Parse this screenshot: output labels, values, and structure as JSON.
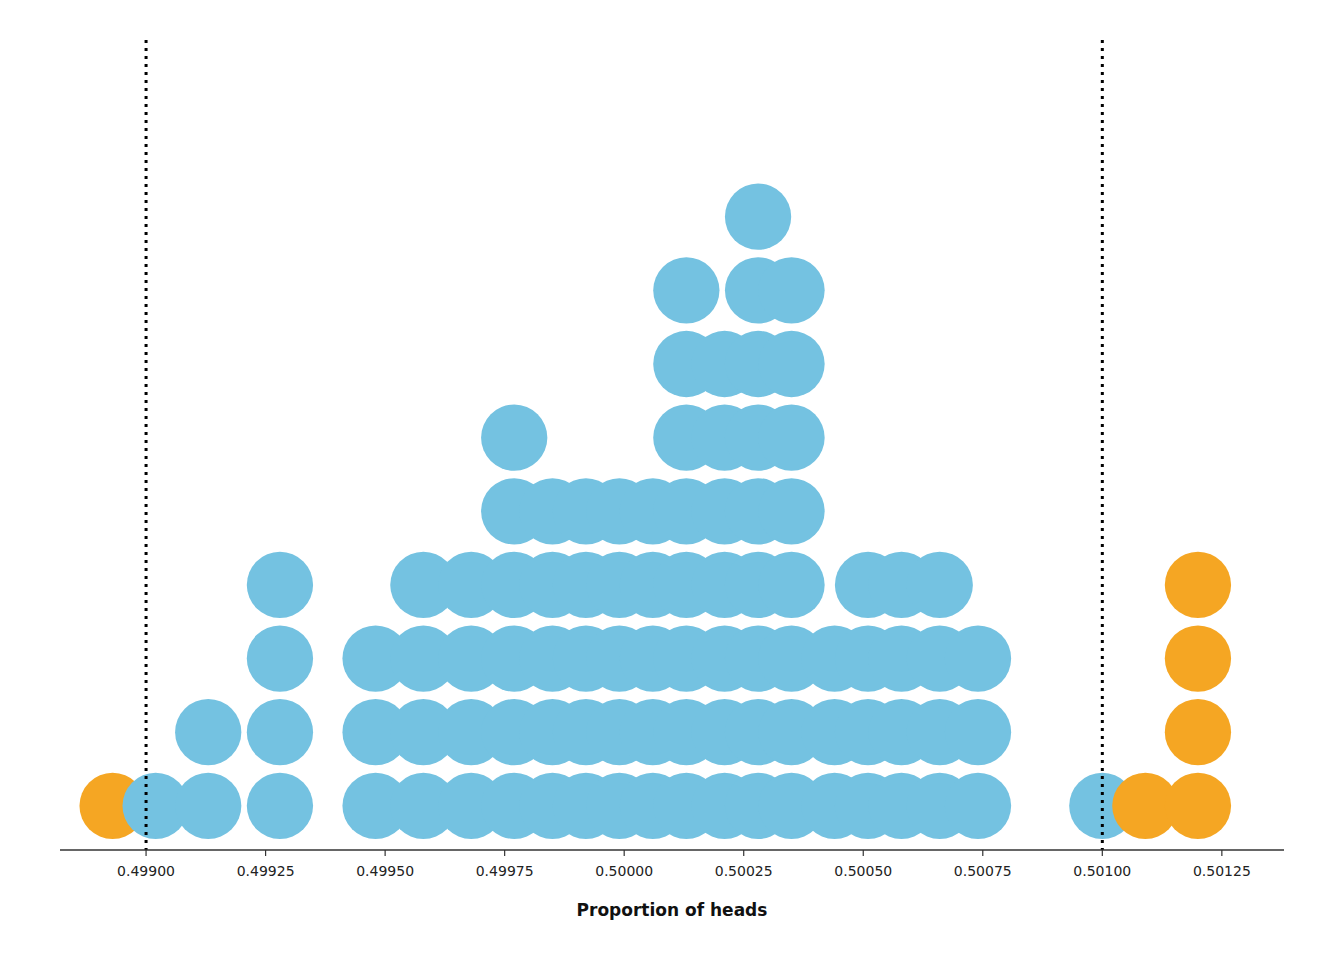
{
  "chart_data": {
    "type": "dot_plot",
    "x_label": "Proportion of heads",
    "x": [
      0.49893,
      0.49902,
      0.49913,
      0.49928,
      0.49948,
      0.49958,
      0.49968,
      0.49977,
      0.49985,
      0.49992,
      0.49999,
      0.50006,
      0.50013,
      0.50021,
      0.50028,
      0.50035,
      0.50044,
      0.50051,
      0.50058,
      0.50066,
      0.50074,
      0.501,
      0.50109,
      0.5012
    ],
    "values": [
      1,
      1,
      2,
      4,
      3,
      4,
      4,
      6,
      5,
      5,
      5,
      5,
      8,
      7,
      9,
      8,
      3,
      4,
      4,
      4,
      3,
      1,
      1,
      4
    ],
    "colors": [
      "#F5A623",
      "#74C2E1",
      "#74C2E1",
      "#74C2E1",
      "#74C2E1",
      "#74C2E1",
      "#74C2E1",
      "#74C2E1",
      "#74C2E1",
      "#74C2E1",
      "#74C2E1",
      "#74C2E1",
      "#74C2E1",
      "#74C2E1",
      "#74C2E1",
      "#74C2E1",
      "#74C2E1",
      "#74C2E1",
      "#74C2E1",
      "#74C2E1",
      "#74C2E1",
      "#74C2E1",
      "#F5A623",
      "#F5A623"
    ],
    "reference_lines": [
      0.499,
      0.501
    ],
    "xlim": [
      0.49882,
      0.50138
    ],
    "ylim": [
      -0.6,
      10.4
    ],
    "xticks": [
      {
        "value": 0.499,
        "label": "0.49900"
      },
      0.49925,
      {
        "value": 0.4995,
        "label": "0.49950"
      },
      0.49975,
      {
        "value": 0.5,
        "label": "0.50000"
      },
      0.50025,
      {
        "value": 0.5005,
        "label": "0.50050"
      },
      0.50075,
      {
        "value": 0.501,
        "label": "0.50100"
      },
      0.50125
    ],
    "tick_labels": "x",
    "grid": false
  }
}
